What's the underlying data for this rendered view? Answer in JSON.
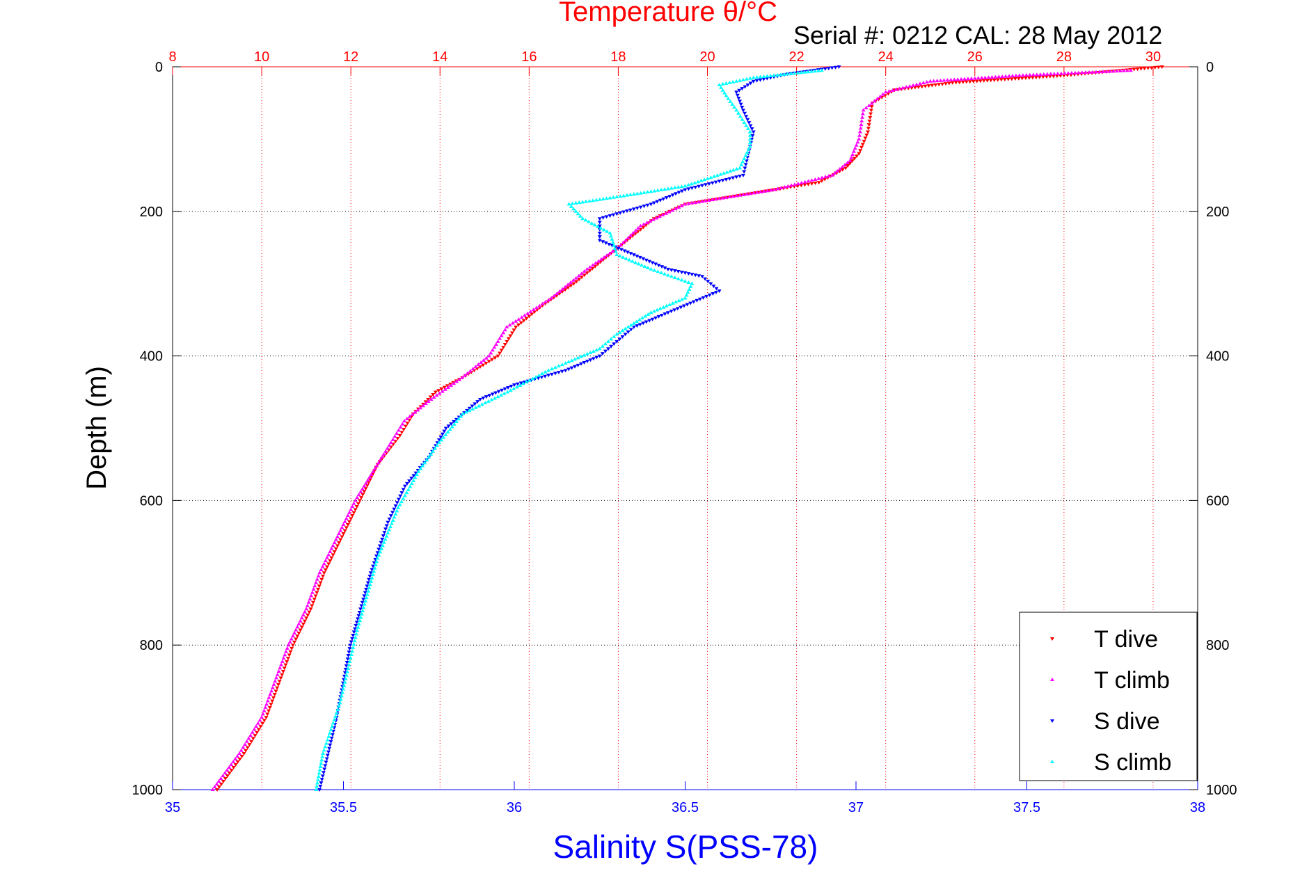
{
  "chart_data": {
    "type": "scatter",
    "title": "Temperature θ/°C",
    "subtitle": "Serial #: 0212  CAL: 28 May 2012",
    "ylabel": "Depth (m)",
    "xlabel_bottom": "Salinity S(PSS-78)",
    "y_reversed": true,
    "ylim": [
      0,
      1000
    ],
    "x_temp_lim": [
      8,
      31
    ],
    "x_sal_lim": [
      35,
      38
    ],
    "y_ticks": [
      "0",
      "200",
      "400",
      "600",
      "800",
      "1000"
    ],
    "temp_ticks": [
      "8",
      "10",
      "12",
      "14",
      "16",
      "18",
      "20",
      "22",
      "24",
      "26",
      "28",
      "30"
    ],
    "sal_ticks": [
      "35",
      "35.5",
      "36",
      "36.5",
      "37",
      "37.5",
      "38"
    ],
    "grid": true,
    "legend_position": "bottom-right",
    "colors": {
      "temp_axis": "#ff0000",
      "sal_axis": "#0000ff",
      "t_dive": "#ff0000",
      "t_climb": "#ff00ff",
      "s_dive": "#0000ff",
      "s_climb": "#00ffff"
    },
    "series": [
      {
        "name": "T dive",
        "axis": "temperature",
        "marker": "triangle-down",
        "points": [
          [
            30.2,
            0
          ],
          [
            28.0,
            12
          ],
          [
            25.5,
            22
          ],
          [
            24.2,
            32
          ],
          [
            23.7,
            50
          ],
          [
            23.6,
            90
          ],
          [
            23.4,
            120
          ],
          [
            23.1,
            140
          ],
          [
            22.5,
            160
          ],
          [
            21.0,
            175
          ],
          [
            19.5,
            190
          ],
          [
            18.8,
            210
          ],
          [
            18.2,
            240
          ],
          [
            17.6,
            270
          ],
          [
            17.0,
            300
          ],
          [
            16.3,
            330
          ],
          [
            15.7,
            360
          ],
          [
            15.3,
            400
          ],
          [
            14.5,
            430
          ],
          [
            13.9,
            450
          ],
          [
            13.4,
            480
          ],
          [
            13.1,
            510
          ],
          [
            12.6,
            550
          ],
          [
            12.2,
            600
          ],
          [
            11.8,
            650
          ],
          [
            11.4,
            700
          ],
          [
            11.1,
            750
          ],
          [
            10.7,
            800
          ],
          [
            10.4,
            850
          ],
          [
            10.1,
            900
          ],
          [
            9.6,
            950
          ],
          [
            9.0,
            1000
          ]
        ]
      },
      {
        "name": "T climb",
        "axis": "temperature",
        "marker": "triangle-up",
        "points": [
          [
            29.5,
            5
          ],
          [
            27.0,
            12
          ],
          [
            25.0,
            20
          ],
          [
            24.0,
            35
          ],
          [
            23.5,
            60
          ],
          [
            23.4,
            100
          ],
          [
            23.2,
            130
          ],
          [
            22.8,
            150
          ],
          [
            21.5,
            170
          ],
          [
            19.5,
            190
          ],
          [
            18.5,
            220
          ],
          [
            18.0,
            250
          ],
          [
            17.3,
            280
          ],
          [
            16.5,
            320
          ],
          [
            15.5,
            360
          ],
          [
            15.1,
            400
          ],
          [
            14.5,
            430
          ],
          [
            13.8,
            460
          ],
          [
            13.2,
            490
          ],
          [
            12.9,
            520
          ],
          [
            12.5,
            560
          ],
          [
            12.1,
            600
          ],
          [
            11.7,
            650
          ],
          [
            11.3,
            700
          ],
          [
            11.0,
            750
          ],
          [
            10.6,
            800
          ],
          [
            10.3,
            850
          ],
          [
            10.0,
            900
          ],
          [
            9.5,
            950
          ],
          [
            8.9,
            1000
          ]
        ]
      },
      {
        "name": "S dive",
        "axis": "salinity",
        "marker": "triangle-down",
        "points": [
          [
            36.95,
            0
          ],
          [
            36.8,
            10
          ],
          [
            36.7,
            20
          ],
          [
            36.65,
            35
          ],
          [
            36.67,
            60
          ],
          [
            36.7,
            90
          ],
          [
            36.69,
            110
          ],
          [
            36.68,
            130
          ],
          [
            36.67,
            150
          ],
          [
            36.5,
            170
          ],
          [
            36.4,
            190
          ],
          [
            36.25,
            210
          ],
          [
            36.25,
            240
          ],
          [
            36.35,
            260
          ],
          [
            36.45,
            280
          ],
          [
            36.55,
            290
          ],
          [
            36.6,
            310
          ],
          [
            36.45,
            340
          ],
          [
            36.35,
            360
          ],
          [
            36.3,
            380
          ],
          [
            36.25,
            400
          ],
          [
            36.15,
            420
          ],
          [
            36.0,
            440
          ],
          [
            35.9,
            460
          ],
          [
            35.8,
            500
          ],
          [
            35.75,
            540
          ],
          [
            35.68,
            580
          ],
          [
            35.63,
            630
          ],
          [
            35.58,
            700
          ],
          [
            35.52,
            800
          ],
          [
            35.48,
            900
          ],
          [
            35.43,
            1000
          ]
        ]
      },
      {
        "name": "S climb",
        "axis": "salinity",
        "marker": "triangle-up",
        "points": [
          [
            36.9,
            5
          ],
          [
            36.7,
            15
          ],
          [
            36.6,
            25
          ],
          [
            36.62,
            40
          ],
          [
            36.65,
            60
          ],
          [
            36.69,
            90
          ],
          [
            36.69,
            110
          ],
          [
            36.66,
            140
          ],
          [
            36.5,
            165
          ],
          [
            36.3,
            180
          ],
          [
            36.16,
            190
          ],
          [
            36.2,
            210
          ],
          [
            36.28,
            230
          ],
          [
            36.3,
            260
          ],
          [
            36.4,
            280
          ],
          [
            36.52,
            300
          ],
          [
            36.5,
            320
          ],
          [
            36.4,
            340
          ],
          [
            36.3,
            370
          ],
          [
            36.25,
            390
          ],
          [
            36.15,
            410
          ],
          [
            36.1,
            420
          ],
          [
            35.98,
            450
          ],
          [
            35.85,
            480
          ],
          [
            35.78,
            520
          ],
          [
            35.72,
            560
          ],
          [
            35.66,
            610
          ],
          [
            35.6,
            680
          ],
          [
            35.54,
            780
          ],
          [
            35.49,
            880
          ],
          [
            35.44,
            950
          ],
          [
            35.42,
            1000
          ]
        ]
      }
    ],
    "legend": [
      {
        "label": "T dive"
      },
      {
        "label": "T climb"
      },
      {
        "label": "S dive"
      },
      {
        "label": "S climb"
      }
    ]
  }
}
